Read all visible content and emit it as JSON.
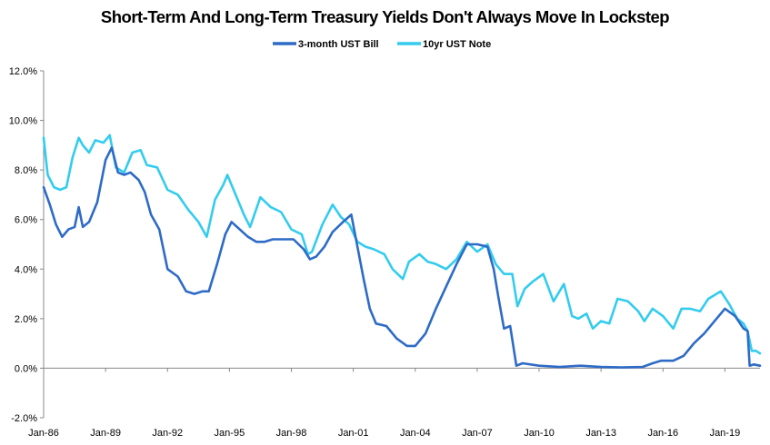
{
  "chart_data": {
    "type": "line",
    "title": "Short-Term And Long-Term Treasury Yields Don't Always Move In Lockstep",
    "xlabel": "",
    "ylabel": "",
    "ylim": [
      -2.0,
      12.0
    ],
    "yticks": [
      -2.0,
      0.0,
      2.0,
      4.0,
      6.0,
      8.0,
      10.0,
      12.0
    ],
    "ytick_labels": [
      "-2.0%",
      "0.0%",
      "2.0%",
      "4.0%",
      "6.0%",
      "8.0%",
      "10.0%",
      "12.0%"
    ],
    "xlim": [
      1986.0,
      2020.7
    ],
    "xticks": [
      1986,
      1989,
      1992,
      1995,
      1998,
      2001,
      2004,
      2007,
      2010,
      2013,
      2016,
      2019
    ],
    "xtick_labels": [
      "Jan-86",
      "Jan-89",
      "Jan-92",
      "Jan-95",
      "Jan-98",
      "Jan-01",
      "Jan-04",
      "Jan-07",
      "Jan-10",
      "Jan-13",
      "Jan-16",
      "Jan-19"
    ],
    "legend_position": "top-center",
    "grid": false,
    "series": [
      {
        "name": "3-month UST Bill",
        "color": "#2E6BC6",
        "x": [
          1986.0,
          1986.3,
          1986.6,
          1986.9,
          1987.2,
          1987.5,
          1987.7,
          1987.9,
          1988.2,
          1988.6,
          1989.0,
          1989.3,
          1989.6,
          1989.9,
          1990.2,
          1990.6,
          1990.9,
          1991.2,
          1991.6,
          1992.0,
          1992.5,
          1992.9,
          1993.3,
          1993.7,
          1994.0,
          1994.4,
          1994.8,
          1995.1,
          1995.5,
          1995.9,
          1996.3,
          1996.7,
          1997.1,
          1997.6,
          1998.1,
          1998.6,
          1998.9,
          1999.2,
          1999.6,
          2000.0,
          2000.5,
          2000.9,
          2001.2,
          2001.5,
          2001.8,
          2002.1,
          2002.6,
          2003.1,
          2003.6,
          2004.0,
          2004.5,
          2005.0,
          2005.5,
          2006.0,
          2006.5,
          2007.0,
          2007.5,
          2007.8,
          2008.0,
          2008.3,
          2008.6,
          2008.9,
          2009.2,
          2010.0,
          2011.0,
          2012.0,
          2013.0,
          2014.0,
          2015.0,
          2015.5,
          2015.9,
          2016.5,
          2017.0,
          2017.5,
          2018.0,
          2018.5,
          2019.0,
          2019.5,
          2019.9,
          2020.1,
          2020.2,
          2020.4,
          2020.7
        ],
        "values": [
          7.3,
          6.6,
          5.8,
          5.3,
          5.6,
          5.7,
          6.5,
          5.7,
          5.9,
          6.7,
          8.4,
          8.9,
          7.9,
          7.8,
          7.9,
          7.6,
          7.1,
          6.2,
          5.6,
          4.0,
          3.7,
          3.1,
          3.0,
          3.1,
          3.1,
          4.2,
          5.4,
          5.9,
          5.6,
          5.3,
          5.1,
          5.1,
          5.2,
          5.2,
          5.2,
          4.8,
          4.4,
          4.5,
          4.9,
          5.5,
          5.9,
          6.2,
          4.9,
          3.6,
          2.4,
          1.8,
          1.7,
          1.2,
          0.9,
          0.9,
          1.4,
          2.4,
          3.3,
          4.2,
          5.0,
          5.0,
          4.9,
          4.0,
          3.0,
          1.6,
          1.7,
          0.1,
          0.2,
          0.1,
          0.05,
          0.1,
          0.05,
          0.03,
          0.05,
          0.2,
          0.3,
          0.3,
          0.5,
          1.0,
          1.4,
          1.9,
          2.4,
          2.1,
          1.6,
          1.5,
          0.1,
          0.15,
          0.1
        ]
      },
      {
        "name": "10yr UST Note",
        "color": "#33CCEE",
        "x": [
          1986.0,
          1986.2,
          1986.5,
          1986.8,
          1987.1,
          1987.4,
          1987.7,
          1987.9,
          1988.2,
          1988.5,
          1988.9,
          1989.2,
          1989.5,
          1989.9,
          1990.3,
          1990.7,
          1991.0,
          1991.5,
          1992.0,
          1992.5,
          1993.0,
          1993.5,
          1993.9,
          1994.3,
          1994.7,
          1994.9,
          1995.3,
          1995.7,
          1996.0,
          1996.5,
          1997.0,
          1997.5,
          1998.0,
          1998.5,
          1998.8,
          1999.0,
          1999.5,
          2000.0,
          2000.4,
          2000.8,
          2001.2,
          2001.6,
          2002.0,
          2002.5,
          2002.9,
          2003.4,
          2003.7,
          2004.2,
          2004.6,
          2005.0,
          2005.5,
          2006.0,
          2006.5,
          2007.0,
          2007.5,
          2007.9,
          2008.3,
          2008.7,
          2008.95,
          2009.3,
          2009.7,
          2010.2,
          2010.7,
          2011.2,
          2011.6,
          2011.9,
          2012.3,
          2012.6,
          2013.0,
          2013.4,
          2013.8,
          2014.3,
          2014.8,
          2015.1,
          2015.5,
          2016.0,
          2016.5,
          2016.9,
          2017.3,
          2017.8,
          2018.2,
          2018.8,
          2019.2,
          2019.6,
          2019.9,
          2020.1,
          2020.3,
          2020.5,
          2020.7
        ],
        "values": [
          9.3,
          7.8,
          7.3,
          7.2,
          7.3,
          8.5,
          9.3,
          9.0,
          8.7,
          9.2,
          9.1,
          9.4,
          8.1,
          7.9,
          8.7,
          8.8,
          8.2,
          8.1,
          7.2,
          7.0,
          6.4,
          5.9,
          5.3,
          6.8,
          7.4,
          7.8,
          7.0,
          6.2,
          5.7,
          6.9,
          6.5,
          6.3,
          5.6,
          5.4,
          4.6,
          4.7,
          5.8,
          6.6,
          6.1,
          5.8,
          5.1,
          4.9,
          4.8,
          4.6,
          4.0,
          3.6,
          4.3,
          4.6,
          4.3,
          4.2,
          4.0,
          4.4,
          5.1,
          4.7,
          5.0,
          4.2,
          3.8,
          3.8,
          2.5,
          3.2,
          3.5,
          3.8,
          2.7,
          3.4,
          2.1,
          2.0,
          2.2,
          1.6,
          1.9,
          1.8,
          2.8,
          2.7,
          2.3,
          1.9,
          2.4,
          2.1,
          1.6,
          2.4,
          2.4,
          2.3,
          2.8,
          3.1,
          2.6,
          2.0,
          1.8,
          1.5,
          0.7,
          0.7,
          0.6
        ]
      }
    ]
  }
}
